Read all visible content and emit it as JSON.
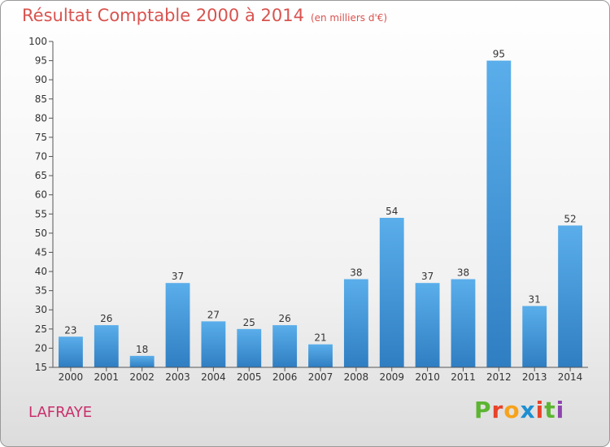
{
  "header": {
    "title": "Résultat Comptable 2000 à 2014",
    "unit": "(en milliers d'€)"
  },
  "footer": {
    "commune": "LAFRAYE",
    "brand_letters": [
      "P",
      "r",
      "o",
      "x",
      "i",
      "t",
      "i"
    ]
  },
  "colors": {
    "bar_top": "#5aaeea",
    "bar_bottom": "#2f7ec2",
    "title": "#d9534f",
    "commune": "#c9306c",
    "brand": [
      "#5cb531",
      "#e8432a",
      "#f7a21b",
      "#1f8fd1",
      "#e8432a",
      "#5cb531",
      "#8e44ad"
    ]
  },
  "chart_data": {
    "type": "bar",
    "title": "Résultat Comptable 2000 à 2014",
    "unit": "(en milliers d'€)",
    "categories": [
      "2000",
      "2001",
      "2002",
      "2003",
      "2004",
      "2005",
      "2006",
      "2007",
      "2008",
      "2009",
      "2010",
      "2011",
      "2012",
      "2013",
      "2014"
    ],
    "values": [
      23,
      26,
      18,
      37,
      27,
      25,
      26,
      21,
      38,
      54,
      37,
      38,
      95,
      31,
      52
    ],
    "xlabel": "",
    "ylabel": "",
    "ylim": [
      15,
      100
    ],
    "yticks": [
      15,
      20,
      25,
      30,
      35,
      40,
      45,
      50,
      55,
      60,
      65,
      70,
      75,
      80,
      85,
      90,
      95,
      100
    ],
    "grid": false,
    "legend": "none"
  }
}
